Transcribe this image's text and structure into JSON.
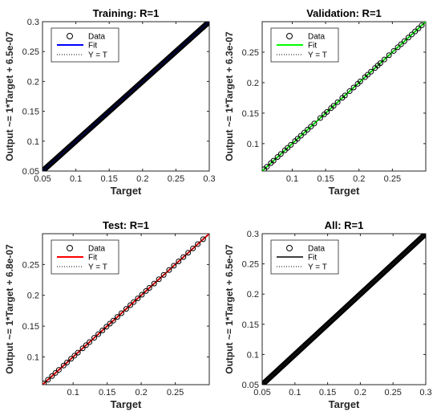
{
  "chart_data": [
    {
      "type": "scatter",
      "title": "Training: R=1",
      "xlabel": "Target",
      "ylabel": "Output ~= 1*Target + 6.5e-07",
      "xlim": [
        0.05,
        0.3
      ],
      "ylim": [
        0.05,
        0.3
      ],
      "xticks": [
        "0.05",
        "0.1",
        "0.15",
        "0.2",
        "0.25",
        "0.3"
      ],
      "yticks": [
        "0.05",
        "0.1",
        "0.15",
        "0.2",
        "0.25",
        "0.3"
      ],
      "fit_color": "#0000ff",
      "dense": true,
      "legend": [
        "Data",
        "Fit",
        "Y = T"
      ],
      "legend_position": "top-left",
      "points": []
    },
    {
      "type": "scatter",
      "title": "Validation: R=1",
      "xlabel": "Target",
      "ylabel": "Output ~= 1*Target + 6.3e-07",
      "xlim": [
        0.055,
        0.3
      ],
      "ylim": [
        0.055,
        0.3
      ],
      "xticks": [
        "0.1",
        "0.15",
        "0.2",
        "0.25"
      ],
      "yticks": [
        "0.1",
        "0.15",
        "0.2",
        "0.25"
      ],
      "fit_color": "#00ff00",
      "dense": false,
      "legend": [
        "Data",
        "Fit",
        "Y = T"
      ],
      "legend_position": "top-left",
      "points": [
        0.058,
        0.062,
        0.068,
        0.072,
        0.078,
        0.083,
        0.089,
        0.093,
        0.098,
        0.104,
        0.108,
        0.113,
        0.118,
        0.123,
        0.128,
        0.133,
        0.142,
        0.148,
        0.152,
        0.158,
        0.162,
        0.168,
        0.175,
        0.179,
        0.186,
        0.192,
        0.198,
        0.202,
        0.209,
        0.213,
        0.218,
        0.224,
        0.228,
        0.232,
        0.238,
        0.245,
        0.252,
        0.258,
        0.263,
        0.268,
        0.274,
        0.279,
        0.284,
        0.289,
        0.294
      ]
    },
    {
      "type": "scatter",
      "title": "Test: R=1",
      "xlabel": "Target",
      "ylabel": "Output ~= 1*Target + 6.8e-07",
      "xlim": [
        0.055,
        0.3
      ],
      "ylim": [
        0.055,
        0.3
      ],
      "xticks": [
        "0.1",
        "0.15",
        "0.2",
        "0.25"
      ],
      "yticks": [
        "0.1",
        "0.15",
        "0.2",
        "0.25"
      ],
      "fit_color": "#ff0000",
      "dense": false,
      "legend": [
        "Data",
        "Fit",
        "Y = T"
      ],
      "legend_position": "top-left",
      "points": [
        0.057,
        0.063,
        0.069,
        0.074,
        0.079,
        0.086,
        0.091,
        0.097,
        0.102,
        0.107,
        0.114,
        0.119,
        0.124,
        0.131,
        0.137,
        0.143,
        0.149,
        0.154,
        0.159,
        0.165,
        0.171,
        0.178,
        0.184,
        0.189,
        0.195,
        0.201,
        0.207,
        0.212,
        0.219,
        0.226,
        0.233,
        0.241,
        0.248,
        0.255,
        0.262,
        0.269,
        0.276,
        0.283,
        0.291
      ]
    },
    {
      "type": "scatter",
      "title": "All: R=1",
      "xlabel": "Target",
      "ylabel": "Output ~= 1*Target + 6.5e-07",
      "xlim": [
        0.05,
        0.3
      ],
      "ylim": [
        0.05,
        0.3
      ],
      "xticks": [
        "0.05",
        "0.1",
        "0.15",
        "0.2",
        "0.25",
        "0.3"
      ],
      "yticks": [
        "0.05",
        "0.1",
        "0.15",
        "0.2",
        "0.25",
        "0.3"
      ],
      "fit_color": "#404040",
      "dense": true,
      "legend": [
        "Data",
        "Fit",
        "Y = T"
      ],
      "legend_position": "top-left",
      "points": []
    }
  ]
}
